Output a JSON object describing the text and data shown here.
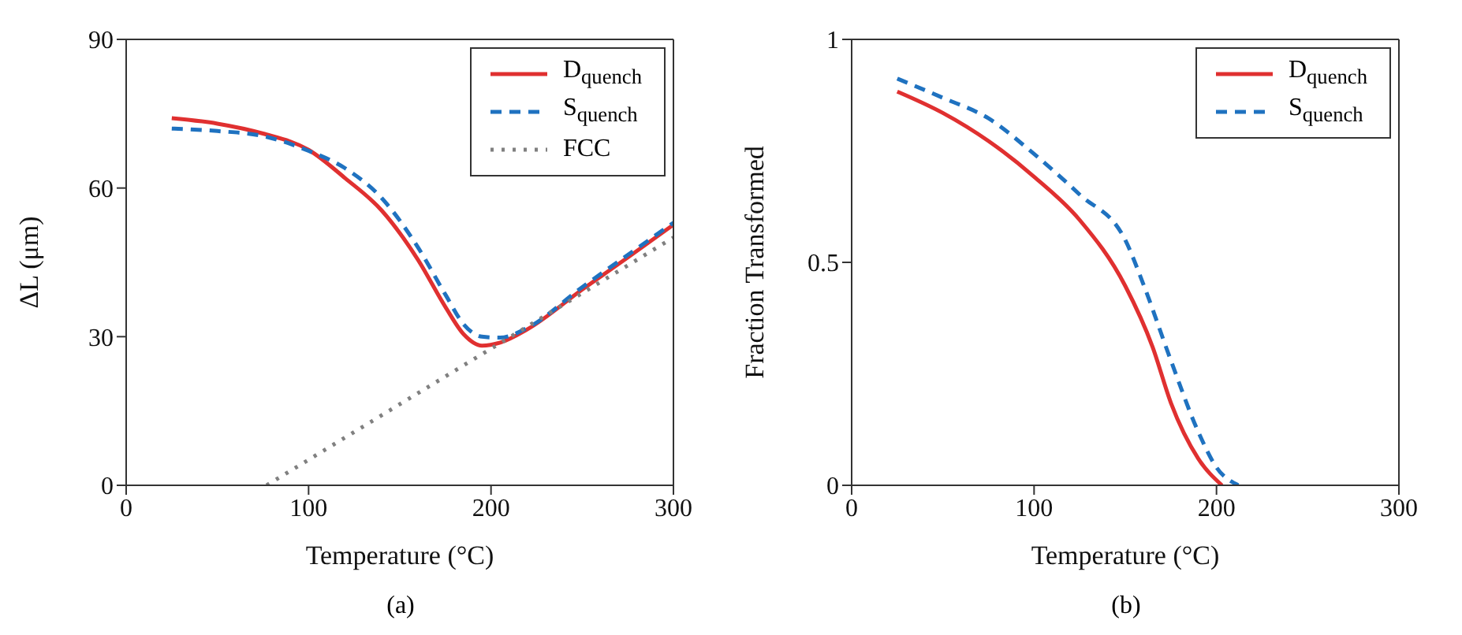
{
  "chart_data": [
    {
      "type": "line",
      "xlabel": "Temperature (°C)",
      "ylabel": "ΔL (μm)",
      "annotations": [
        "(a)"
      ],
      "xlim": [
        0,
        300
      ],
      "xticks": [
        0,
        100,
        200,
        300
      ],
      "ylim": [
        0,
        90
      ],
      "yticks": [
        0,
        30,
        60,
        90
      ],
      "legend": "top right",
      "series": [
        {
          "name": "D$_{quench}$",
          "color": "#e03030",
          "line_style": "solid",
          "x": [
            25,
            50,
            75,
            100,
            120,
            140,
            160,
            175,
            185,
            195,
            205,
            220,
            250,
            275,
            300
          ],
          "values": [
            74.1,
            73,
            71,
            67.7,
            62,
            55.5,
            45.5,
            36,
            30.5,
            28.2,
            28.8,
            31.5,
            39.5,
            46,
            52.6
          ]
        },
        {
          "name": "S$_{quench}$",
          "color": "#1f72c0",
          "line_style": "dashed",
          "x": [
            25,
            50,
            75,
            100,
            120,
            140,
            160,
            175,
            185,
            195,
            205,
            220,
            250,
            275,
            300
          ],
          "values": [
            72,
            71.5,
            70.5,
            67.5,
            64,
            58,
            48,
            38.5,
            32.5,
            30,
            29.8,
            31.8,
            40,
            46.5,
            53
          ]
        },
        {
          "name": "FCC",
          "color": "#808080",
          "line_style": "dotted",
          "x": [
            77,
            300
          ],
          "values": [
            0,
            50
          ]
        }
      ]
    },
    {
      "type": "line",
      "xlabel": "Temperature (°C)",
      "ylabel": "Fraction Transformed",
      "annotations": [
        "(b)"
      ],
      "xlim": [
        0,
        300
      ],
      "xticks": [
        0,
        100,
        200,
        300
      ],
      "ylim": [
        0,
        1
      ],
      "yticks": [
        0,
        0.5,
        1
      ],
      "legend": "top right",
      "series": [
        {
          "name": "D$_{quench}$",
          "color": "#e03030",
          "line_style": "solid",
          "x": [
            25,
            50,
            75,
            100,
            125,
            150,
            165,
            175,
            190,
            203
          ],
          "values": [
            0.883,
            0.835,
            0.772,
            0.692,
            0.595,
            0.447,
            0.31,
            0.185,
            0.06,
            0
          ]
        },
        {
          "name": "S$_{quench}$",
          "color": "#1f72c0",
          "line_style": "dashed",
          "x": [
            25,
            50,
            75,
            100,
            125,
            150,
            160,
            175,
            190,
            200,
            212
          ],
          "values": [
            0.912,
            0.869,
            0.823,
            0.743,
            0.652,
            0.55,
            0.45,
            0.28,
            0.12,
            0.04,
            0
          ]
        }
      ]
    }
  ]
}
